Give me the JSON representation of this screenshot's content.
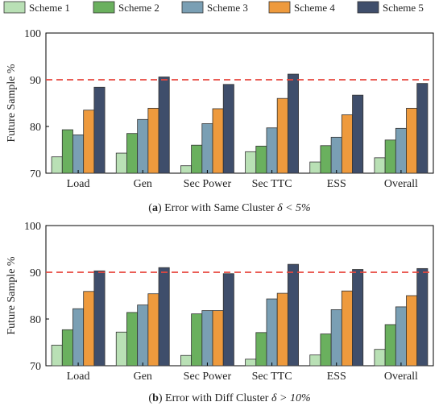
{
  "legend": {
    "items": [
      {
        "label": "Scheme 1",
        "color": "#b9e0b5"
      },
      {
        "label": "Scheme 2",
        "color": "#6ab05e"
      },
      {
        "label": "Scheme 3",
        "color": "#7a9fb4"
      },
      {
        "label": "Scheme 4",
        "color": "#ee9a3d"
      },
      {
        "label": "Scheme 5",
        "color": "#3f4e6b"
      }
    ]
  },
  "chart_data": [
    {
      "type": "bar",
      "panel_label": "a",
      "caption_text": " Error with Same Cluster ",
      "caption_math": "δ < 5%",
      "ylabel": "Future Sample %",
      "ylim": [
        70,
        100
      ],
      "yticks": [
        70,
        80,
        90,
        100
      ],
      "reference_line": 90,
      "categories": [
        "Load",
        "Gen",
        "Sec Power",
        "Sec TTC",
        "ESS",
        "Overall"
      ],
      "series": [
        {
          "name": "Scheme 1",
          "values": [
            73.5,
            74.3,
            71.6,
            74.6,
            72.4,
            73.3
          ]
        },
        {
          "name": "Scheme 2",
          "values": [
            79.3,
            78.5,
            76.0,
            75.8,
            75.9,
            77.1
          ]
        },
        {
          "name": "Scheme 3",
          "values": [
            78.2,
            81.5,
            80.6,
            79.7,
            77.7,
            79.6
          ]
        },
        {
          "name": "Scheme 4",
          "values": [
            83.5,
            83.9,
            83.8,
            86.0,
            82.5,
            83.9
          ]
        },
        {
          "name": "Scheme 5",
          "values": [
            88.4,
            90.6,
            89.0,
            91.2,
            86.7,
            89.2
          ]
        }
      ]
    },
    {
      "type": "bar",
      "panel_label": "b",
      "caption_text": " Error with Diff Cluster ",
      "caption_math": "δ > 10%",
      "ylabel": "Future Sample %",
      "ylim": [
        70,
        100
      ],
      "yticks": [
        70,
        80,
        90,
        100
      ],
      "reference_line": 90,
      "categories": [
        "Load",
        "Gen",
        "Sec Power",
        "Sec TTC",
        "ESS",
        "Overall"
      ],
      "series": [
        {
          "name": "Scheme 1",
          "values": [
            74.4,
            77.2,
            72.2,
            71.4,
            72.3,
            73.5
          ]
        },
        {
          "name": "Scheme 2",
          "values": [
            77.7,
            81.4,
            81.1,
            77.1,
            76.8,
            78.8
          ]
        },
        {
          "name": "Scheme 3",
          "values": [
            82.2,
            83.0,
            81.8,
            84.3,
            82.0,
            82.6
          ]
        },
        {
          "name": "Scheme 4",
          "values": [
            85.9,
            85.4,
            81.8,
            85.5,
            86.0,
            85.0
          ]
        },
        {
          "name": "Scheme 5",
          "values": [
            90.3,
            91.0,
            89.7,
            91.7,
            90.6,
            90.8
          ]
        }
      ]
    }
  ]
}
